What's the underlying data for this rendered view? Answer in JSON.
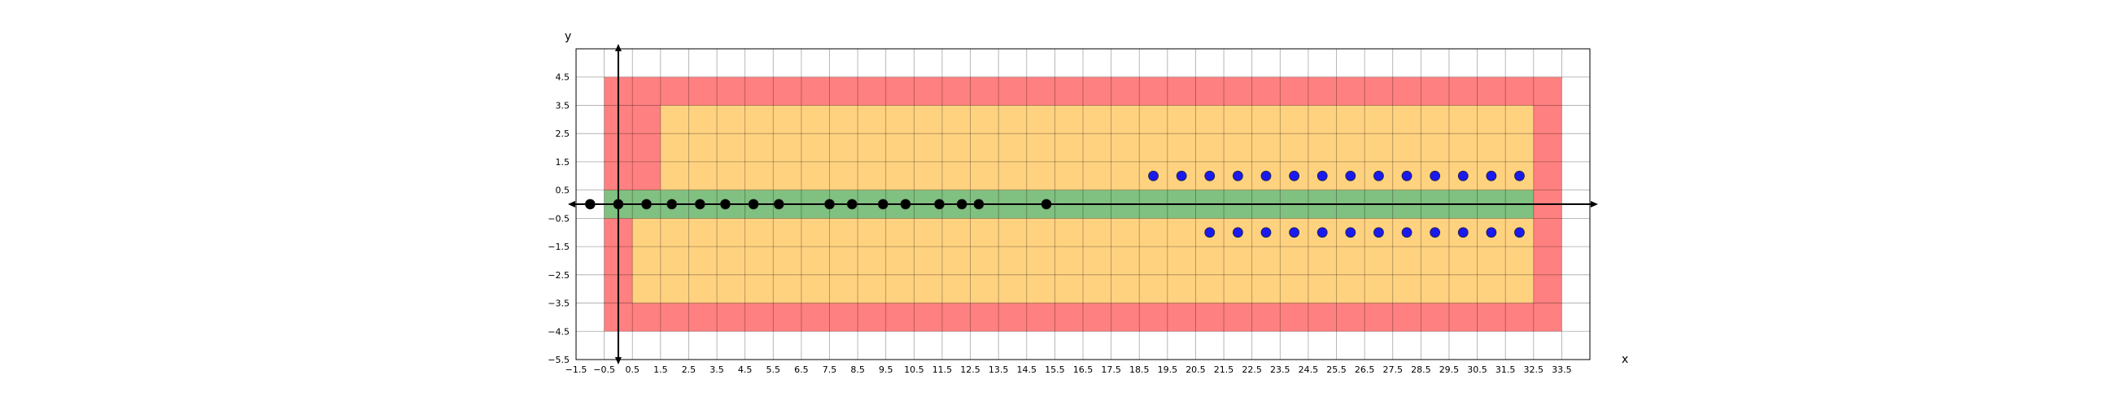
{
  "chart_data": {
    "type": "scatter",
    "xlabel": "x",
    "ylabel": "y",
    "xlim": [
      -1.5,
      34.5
    ],
    "ylim": [
      -5.5,
      5.5
    ],
    "grid": true,
    "colors": {
      "outer_region": "#ff8080",
      "inner_region": "#ffd280",
      "center_strip": "#80c080",
      "black_points": "#000000",
      "blue_points": "#1a1aee"
    },
    "x_ticks": [
      "−1.5",
      "−0.5",
      "0.5",
      "1.5",
      "2.5",
      "3.5",
      "4.5",
      "5.5",
      "6.5",
      "7.5",
      "8.5",
      "9.5",
      "10.5",
      "11.5",
      "12.5",
      "13.5",
      "14.5",
      "15.5",
      "16.5",
      "17.5",
      "18.5",
      "19.5",
      "20.5",
      "21.5",
      "22.5",
      "23.5",
      "24.5",
      "25.5",
      "26.5",
      "27.5",
      "28.5",
      "29.5",
      "30.5",
      "31.5",
      "32.5",
      "33.5"
    ],
    "y_ticks": [
      "4.5",
      "3.5",
      "2.5",
      "1.5",
      "0.5",
      "−0.5",
      "−1.5",
      "−2.5",
      "−3.5",
      "−4.5",
      "−5.5"
    ],
    "regions": [
      {
        "kind": "outer",
        "x": [
          -0.5,
          33.5
        ],
        "y": [
          -4.5,
          4.5
        ]
      },
      {
        "kind": "inner-upper",
        "x": [
          1.5,
          32.5
        ],
        "y": [
          0.5,
          3.5
        ]
      },
      {
        "kind": "inner-lower",
        "x": [
          0.5,
          32.5
        ],
        "y": [
          -3.5,
          -0.5
        ]
      },
      {
        "kind": "center-strip",
        "x": [
          -0.5,
          32.5
        ],
        "y": [
          -0.5,
          0.5
        ]
      }
    ],
    "series": [
      {
        "values": [
          {
            "x": -1.0,
            "y": 0
          },
          {
            "x": 0.0,
            "y": 0
          },
          {
            "x": 1.0,
            "y": 0
          },
          {
            "x": 1.9,
            "y": 0
          },
          {
            "x": 2.9,
            "y": 0
          },
          {
            "x": 3.8,
            "y": 0
          },
          {
            "x": 4.8,
            "y": 0
          },
          {
            "x": 5.7,
            "y": 0
          },
          {
            "x": 7.5,
            "y": 0
          },
          {
            "x": 8.3,
            "y": 0
          },
          {
            "x": 9.4,
            "y": 0
          },
          {
            "x": 10.2,
            "y": 0
          },
          {
            "x": 11.4,
            "y": 0
          },
          {
            "x": 12.2,
            "y": 0
          },
          {
            "x": 12.8,
            "y": 0
          },
          {
            "x": 15.2,
            "y": 0
          }
        ]
      },
      {
        "values": [
          {
            "x": 19.0,
            "y": 1
          },
          {
            "x": 20.0,
            "y": 1
          },
          {
            "x": 21.0,
            "y": 1
          },
          {
            "x": 22.0,
            "y": 1
          },
          {
            "x": 23.0,
            "y": 1
          },
          {
            "x": 24.0,
            "y": 1
          },
          {
            "x": 25.0,
            "y": 1
          },
          {
            "x": 26.0,
            "y": 1
          },
          {
            "x": 27.0,
            "y": 1
          },
          {
            "x": 28.0,
            "y": 1
          },
          {
            "x": 29.0,
            "y": 1
          },
          {
            "x": 30.0,
            "y": 1
          },
          {
            "x": 31.0,
            "y": 1
          },
          {
            "x": 32.0,
            "y": 1
          },
          {
            "x": 21.0,
            "y": -1
          },
          {
            "x": 22.0,
            "y": -1
          },
          {
            "x": 23.0,
            "y": -1
          },
          {
            "x": 24.0,
            "y": -1
          },
          {
            "x": 25.0,
            "y": -1
          },
          {
            "x": 26.0,
            "y": -1
          },
          {
            "x": 27.0,
            "y": -1
          },
          {
            "x": 28.0,
            "y": -1
          },
          {
            "x": 29.0,
            "y": -1
          },
          {
            "x": 30.0,
            "y": -1
          },
          {
            "x": 31.0,
            "y": -1
          },
          {
            "x": 32.0,
            "y": -1
          }
        ]
      }
    ]
  }
}
